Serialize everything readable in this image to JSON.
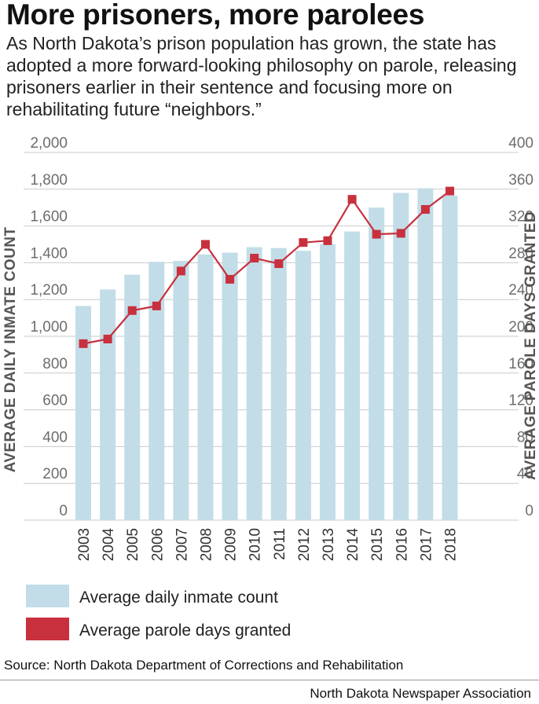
{
  "header": {
    "title": "More prisoners, more parolees",
    "subtitle": "As North Dakota’s prison population has grown, the state has adopted a more forward-looking philosophy on parole, releasing prisoners earlier in their sentence and focusing more on rehabilitating future “neighbors.”"
  },
  "chart_data": {
    "type": "bar",
    "categories": [
      "2003",
      "2004",
      "2005",
      "2006",
      "2007",
      "2008",
      "2009",
      "2010",
      "2011",
      "2012",
      "2013",
      "2014",
      "2015",
      "2016",
      "2017",
      "2018"
    ],
    "series": [
      {
        "name": "Average daily inmate count",
        "chart_type": "bar",
        "axis": "left",
        "color": "#c2dde8",
        "values": [
          1165,
          1255,
          1335,
          1405,
          1410,
          1445,
          1455,
          1485,
          1480,
          1465,
          1500,
          1570,
          1700,
          1780,
          1805,
          1765
        ]
      },
      {
        "name": "Average parole days granted",
        "chart_type": "line",
        "axis": "right",
        "color": "#c8303e",
        "values": [
          192,
          197,
          228,
          233,
          271,
          300,
          262,
          285,
          279,
          302,
          304,
          349,
          311,
          312,
          338,
          358
        ]
      }
    ],
    "ylabel": "AVERAGE DAILY INMATE COUNT",
    "y2label": "AVERAGE PAROLE DAYS GRANTED",
    "ylim": [
      0,
      2000
    ],
    "y2lim": [
      0,
      400
    ],
    "yticks": [
      "0",
      "200",
      "400",
      "600",
      "800",
      "1,000",
      "1,200",
      "1,400",
      "1,600",
      "1,800",
      "2,000"
    ],
    "y2ticks": [
      "0",
      "40",
      "80",
      "120",
      "160",
      "200",
      "240",
      "280",
      "320",
      "360",
      "400"
    ],
    "grid": true,
    "legend_position": "bottom"
  },
  "footer": {
    "source": "Source: North Dakota Department of Corrections and Rehabilitation",
    "credit": "North Dakota Newspaper Association"
  }
}
